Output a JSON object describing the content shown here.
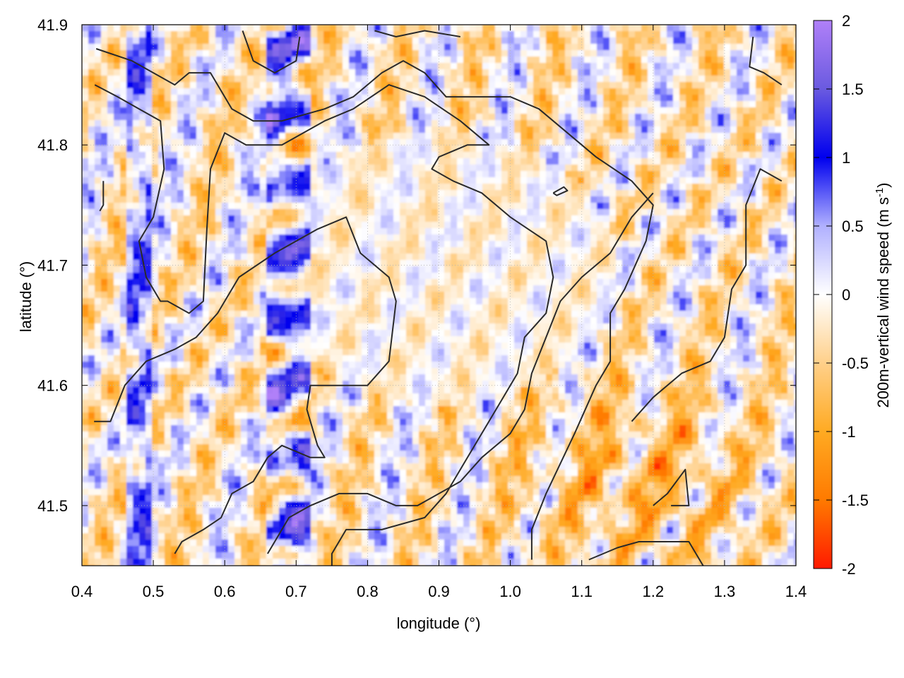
{
  "chart_data": {
    "type": "heatmap",
    "title": "",
    "xlabel": "longitude (°)",
    "ylabel": "latitude (°)",
    "xlim": [
      0.4,
      1.4
    ],
    "ylim": [
      41.45,
      41.9
    ],
    "x_ticks": [
      "0.4",
      "0.5",
      "0.6",
      "0.7",
      "0.8",
      "0.9",
      "1.0",
      "1.1",
      "1.2",
      "1.3",
      "1.4"
    ],
    "x_tick_values": [
      0.4,
      0.5,
      0.6,
      0.7,
      0.8,
      0.9,
      1.0,
      1.1,
      1.2,
      1.3,
      1.4
    ],
    "y_ticks": [
      "41.5",
      "41.6",
      "41.7",
      "41.8",
      "41.9"
    ],
    "y_tick_values": [
      41.5,
      41.6,
      41.7,
      41.8,
      41.9
    ],
    "grid": true,
    "colorbar": {
      "label_main": "200m-vertical wind speed (m s",
      "label_sup": "-1",
      "label_end": ")",
      "range": [
        -2,
        2
      ],
      "ticks": [
        "2",
        "1.5",
        "1",
        "0.5",
        "0",
        "-0.5",
        "-1",
        "-1.5",
        "-2"
      ],
      "tick_values": [
        2,
        1.5,
        1,
        0.5,
        0,
        -0.5,
        -1,
        -1.5,
        -2
      ],
      "colors": {
        "-2": "#ff1a00",
        "-1.5": "#ff7a00",
        "-1": "#ffaa22",
        "-0.5": "#ffd08a",
        "0": "#ffffff",
        "0.5": "#b0b0ff",
        "1": "#0000ee",
        "1.5": "#6a5ae0",
        "2": "#b080f8"
      }
    },
    "contours": [
      [
        [
          0.42,
          41.88
        ],
        [
          0.47,
          41.87
        ],
        [
          0.53,
          41.85
        ],
        [
          0.55,
          41.86
        ],
        [
          0.58,
          41.86
        ],
        [
          0.61,
          41.83
        ],
        [
          0.64,
          41.82
        ],
        [
          0.68,
          41.82
        ],
        [
          0.74,
          41.83
        ],
        [
          0.78,
          41.84
        ],
        [
          0.82,
          41.86
        ],
        [
          0.85,
          41.87
        ],
        [
          0.88,
          41.86
        ],
        [
          0.91,
          41.84
        ],
        [
          0.96,
          41.84
        ],
        [
          1.0,
          41.84
        ],
        [
          1.04,
          41.83
        ],
        [
          1.08,
          41.81
        ],
        [
          1.12,
          41.79
        ],
        [
          1.17,
          41.77
        ],
        [
          1.2,
          41.75
        ],
        [
          1.19,
          41.72
        ],
        [
          1.16,
          41.68
        ],
        [
          1.14,
          41.66
        ],
        [
          1.14,
          41.62
        ],
        [
          1.12,
          41.6
        ],
        [
          1.09,
          41.56
        ],
        [
          1.05,
          41.51
        ],
        [
          1.03,
          41.48
        ],
        [
          1.03,
          41.455
        ]
      ],
      [
        [
          0.418,
          41.85
        ],
        [
          0.45,
          41.84
        ],
        [
          0.48,
          41.83
        ],
        [
          0.51,
          41.82
        ],
        [
          0.515,
          41.78
        ],
        [
          0.5,
          41.74
        ],
        [
          0.48,
          41.72
        ],
        [
          0.49,
          41.69
        ],
        [
          0.51,
          41.67
        ],
        [
          0.52,
          41.67
        ],
        [
          0.55,
          41.66
        ],
        [
          0.57,
          41.67
        ],
        [
          0.575,
          41.73
        ],
        [
          0.58,
          41.78
        ],
        [
          0.6,
          41.81
        ],
        [
          0.63,
          41.8
        ],
        [
          0.68,
          41.8
        ],
        [
          0.74,
          41.82
        ],
        [
          0.78,
          41.83
        ],
        [
          0.83,
          41.85
        ],
        [
          0.88,
          41.84
        ],
        [
          0.93,
          41.82
        ],
        [
          0.97,
          41.8
        ],
        [
          0.94,
          41.8
        ],
        [
          0.9,
          41.79
        ],
        [
          0.89,
          41.78
        ],
        [
          0.92,
          41.77
        ],
        [
          0.96,
          41.76
        ],
        [
          1.0,
          41.74
        ],
        [
          1.05,
          41.72
        ],
        [
          1.06,
          41.69
        ],
        [
          1.05,
          41.66
        ],
        [
          1.02,
          41.64
        ],
        [
          1.01,
          41.61
        ],
        [
          0.99,
          41.59
        ],
        [
          0.97,
          41.57
        ],
        [
          0.94,
          41.54
        ],
        [
          0.91,
          41.51
        ],
        [
          0.88,
          41.49
        ],
        [
          0.82,
          41.48
        ],
        [
          0.77,
          41.48
        ],
        [
          0.75,
          41.46
        ],
        [
          0.75,
          41.45
        ]
      ],
      [
        [
          0.417,
          41.57
        ],
        [
          0.44,
          41.57
        ],
        [
          0.46,
          41.6
        ],
        [
          0.49,
          41.62
        ],
        [
          0.53,
          41.63
        ],
        [
          0.56,
          41.64
        ],
        [
          0.59,
          41.66
        ],
        [
          0.62,
          41.69
        ],
        [
          0.67,
          41.71
        ],
        [
          0.73,
          41.73
        ],
        [
          0.77,
          41.74
        ],
        [
          0.79,
          41.71
        ],
        [
          0.83,
          41.69
        ],
        [
          0.84,
          41.67
        ],
        [
          0.83,
          41.62
        ],
        [
          0.8,
          41.6
        ],
        [
          0.77,
          41.6
        ],
        [
          0.72,
          41.6
        ],
        [
          0.715,
          41.58
        ],
        [
          0.73,
          41.55
        ],
        [
          0.74,
          41.54
        ],
        [
          0.72,
          41.54
        ],
        [
          0.68,
          41.55
        ],
        [
          0.66,
          41.54
        ],
        [
          0.64,
          41.52
        ],
        [
          0.61,
          41.51
        ],
        [
          0.595,
          41.49
        ],
        [
          0.57,
          41.48
        ],
        [
          0.54,
          41.47
        ],
        [
          0.53,
          41.46
        ]
      ],
      [
        [
          0.66,
          41.46
        ],
        [
          0.69,
          41.49
        ],
        [
          0.72,
          41.5
        ],
        [
          0.76,
          41.51
        ],
        [
          0.8,
          41.51
        ],
        [
          0.84,
          41.5
        ],
        [
          0.87,
          41.5
        ],
        [
          0.9,
          41.51
        ],
        [
          0.93,
          41.52
        ],
        [
          0.96,
          41.54
        ],
        [
          1.0,
          41.56
        ],
        [
          1.02,
          41.58
        ],
        [
          1.03,
          41.61
        ],
        [
          1.05,
          41.64
        ],
        [
          1.07,
          41.67
        ],
        [
          1.1,
          41.69
        ],
        [
          1.14,
          41.71
        ],
        [
          1.17,
          41.74
        ],
        [
          1.2,
          41.76
        ]
      ],
      [
        [
          0.625,
          41.895
        ],
        [
          0.64,
          41.87
        ],
        [
          0.67,
          41.86
        ],
        [
          0.7,
          41.87
        ],
        [
          0.705,
          41.89
        ]
      ],
      [
        [
          0.81,
          41.895
        ],
        [
          0.84,
          41.89
        ],
        [
          0.88,
          41.895
        ],
        [
          0.93,
          41.89
        ]
      ],
      [
        [
          1.06,
          41.76
        ],
        [
          1.075,
          41.765
        ],
        [
          1.08,
          41.762
        ],
        [
          1.065,
          41.758
        ],
        [
          1.06,
          41.76
        ]
      ],
      [
        [
          1.2,
          41.5
        ],
        [
          1.22,
          41.51
        ],
        [
          1.245,
          41.53
        ],
        [
          1.25,
          41.5
        ],
        [
          1.225,
          41.5
        ]
      ],
      [
        [
          1.34,
          41.89
        ],
        [
          1.335,
          41.865
        ],
        [
          1.355,
          41.86
        ],
        [
          1.38,
          41.85
        ]
      ],
      [
        [
          0.43,
          41.77
        ],
        [
          0.43,
          41.75
        ],
        [
          0.425,
          41.745
        ]
      ],
      [
        [
          1.11,
          41.455
        ],
        [
          1.15,
          41.465
        ],
        [
          1.18,
          41.47
        ],
        [
          1.22,
          41.47
        ],
        [
          1.25,
          41.47
        ],
        [
          1.27,
          41.45
        ]
      ],
      [
        [
          1.38,
          41.77
        ],
        [
          1.35,
          41.78
        ],
        [
          1.33,
          41.75
        ],
        [
          1.33,
          41.7
        ],
        [
          1.31,
          41.68
        ],
        [
          1.3,
          41.64
        ],
        [
          1.28,
          41.62
        ],
        [
          1.24,
          41.61
        ],
        [
          1.2,
          41.59
        ],
        [
          1.17,
          41.57
        ]
      ]
    ],
    "annotations": []
  }
}
